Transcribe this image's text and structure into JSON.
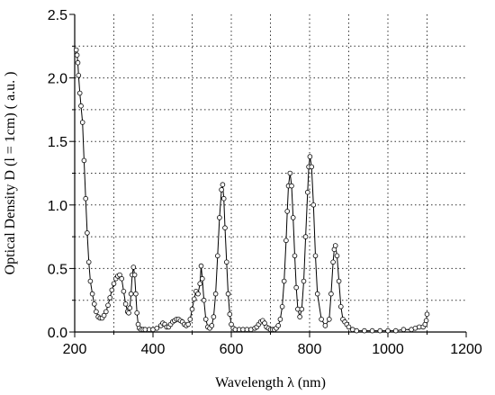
{
  "chart_data": {
    "type": "scatter",
    "title": "",
    "xlabel": "Wavelength λ (nm)",
    "ylabel": "Optical Density D (l = 1cm) ( a.u. )",
    "xlim": [
      200,
      1200
    ],
    "ylim": [
      0,
      2.5
    ],
    "xticks": [
      200,
      400,
      600,
      800,
      1000,
      1200
    ],
    "yticks": [
      0.0,
      0.5,
      1.0,
      1.5,
      2.0,
      2.5
    ],
    "xtick_labels": [
      "200",
      "400",
      "600",
      "800",
      "1000",
      "1200"
    ],
    "ytick_labels": [
      "0.0",
      "0.5",
      "1.0",
      "1.5",
      "2.0",
      "2.5"
    ],
    "grid": true,
    "marker": "open-circle",
    "series": [
      {
        "values_x": [
          204,
          206,
          208,
          210,
          213,
          216,
          220,
          224,
          228,
          232,
          236,
          240,
          245,
          250,
          255,
          260,
          265,
          270,
          275,
          280,
          285,
          290,
          295,
          300,
          305,
          310,
          315,
          320,
          325,
          330,
          335,
          338,
          341,
          344,
          347,
          350,
          353,
          356,
          359,
          362,
          365,
          370,
          375,
          380,
          390,
          400,
          410,
          420,
          425,
          430,
          435,
          440,
          445,
          450,
          455,
          460,
          465,
          470,
          475,
          480,
          485,
          490,
          495,
          500,
          505,
          510,
          515,
          520,
          523,
          526,
          530,
          535,
          540,
          545,
          550,
          555,
          560,
          565,
          570,
          575,
          578,
          581,
          584,
          588,
          592,
          596,
          600,
          605,
          610,
          620,
          630,
          640,
          650,
          660,
          665,
          670,
          675,
          680,
          685,
          690,
          695,
          700,
          705,
          710,
          715,
          720,
          725,
          730,
          735,
          740,
          743,
          746,
          750,
          754,
          758,
          762,
          766,
          770,
          775,
          780,
          785,
          790,
          795,
          798,
          801,
          805,
          810,
          815,
          820,
          830,
          840,
          850,
          855,
          860,
          863,
          866,
          870,
          875,
          880,
          885,
          890,
          895,
          900,
          910,
          920,
          940,
          960,
          980,
          1000,
          1020,
          1040,
          1060,
          1070,
          1080,
          1090,
          1095,
          1098,
          1100
        ],
        "values_y": [
          2.22,
          2.18,
          2.12,
          2.02,
          1.88,
          1.78,
          1.65,
          1.35,
          1.05,
          0.78,
          0.55,
          0.4,
          0.3,
          0.22,
          0.16,
          0.12,
          0.11,
          0.11,
          0.13,
          0.16,
          0.21,
          0.27,
          0.33,
          0.38,
          0.42,
          0.44,
          0.45,
          0.42,
          0.32,
          0.22,
          0.16,
          0.15,
          0.19,
          0.3,
          0.45,
          0.51,
          0.45,
          0.3,
          0.15,
          0.06,
          0.03,
          0.02,
          0.02,
          0.02,
          0.02,
          0.02,
          0.03,
          0.05,
          0.07,
          0.06,
          0.04,
          0.04,
          0.06,
          0.08,
          0.09,
          0.1,
          0.1,
          0.09,
          0.08,
          0.06,
          0.05,
          0.06,
          0.1,
          0.18,
          0.26,
          0.32,
          0.3,
          0.38,
          0.52,
          0.42,
          0.25,
          0.1,
          0.04,
          0.03,
          0.05,
          0.12,
          0.3,
          0.6,
          0.9,
          1.12,
          1.16,
          1.05,
          0.82,
          0.55,
          0.3,
          0.14,
          0.06,
          0.03,
          0.02,
          0.02,
          0.02,
          0.02,
          0.02,
          0.03,
          0.04,
          0.06,
          0.08,
          0.09,
          0.07,
          0.04,
          0.03,
          0.02,
          0.02,
          0.02,
          0.03,
          0.05,
          0.1,
          0.2,
          0.4,
          0.72,
          0.95,
          1.15,
          1.25,
          1.15,
          0.9,
          0.6,
          0.35,
          0.18,
          0.12,
          0.18,
          0.4,
          0.75,
          1.1,
          1.3,
          1.38,
          1.3,
          1.0,
          0.6,
          0.3,
          0.1,
          0.05,
          0.1,
          0.3,
          0.55,
          0.65,
          0.68,
          0.6,
          0.4,
          0.2,
          0.1,
          0.08,
          0.06,
          0.04,
          0.02,
          0.01,
          0.01,
          0.01,
          0.01,
          0.01,
          0.01,
          0.02,
          0.02,
          0.03,
          0.04,
          0.04,
          0.06,
          0.09,
          0.14
        ]
      }
    ]
  }
}
